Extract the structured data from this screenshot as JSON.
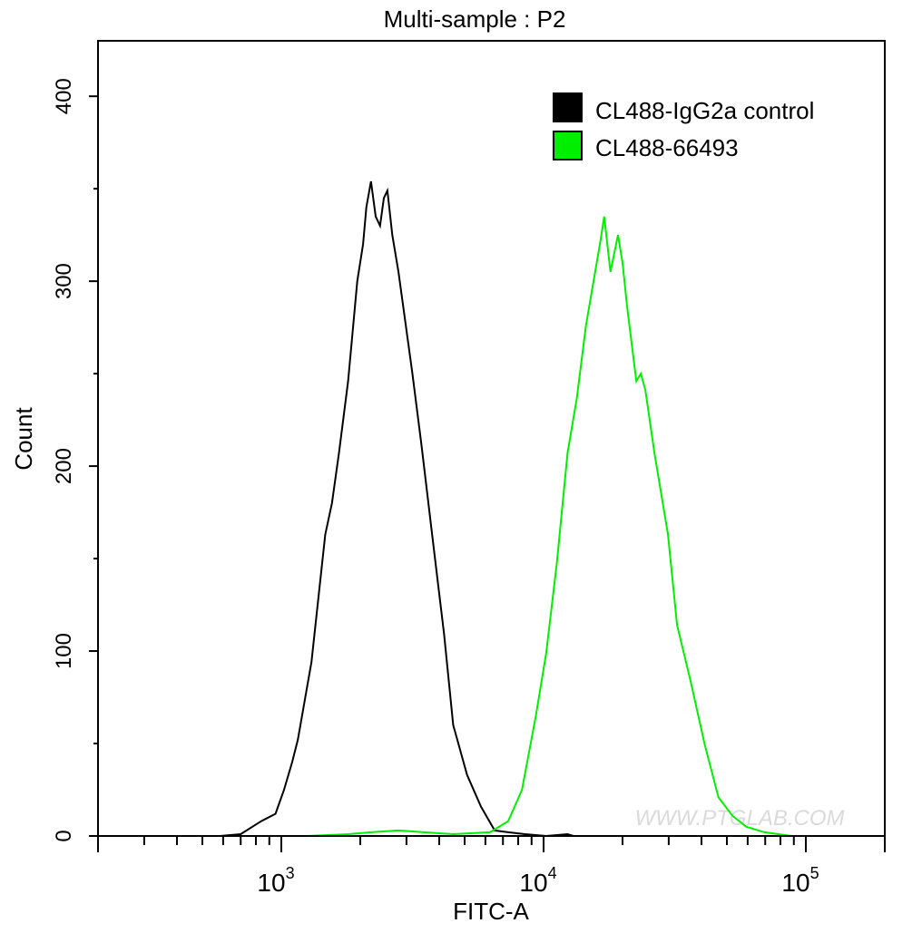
{
  "chart_data": {
    "type": "line",
    "title": "Multi-sample : P2",
    "xlabel": "FITC-A",
    "ylabel": "Count",
    "xscale": "log",
    "xlim": [
      200,
      200000
    ],
    "ylim": [
      0,
      430
    ],
    "x_ticks": [
      {
        "value": 1000,
        "base": "10",
        "exp": "3"
      },
      {
        "value": 10000,
        "base": "10",
        "exp": "4"
      },
      {
        "value": 100000,
        "base": "10",
        "exp": "5"
      }
    ],
    "y_ticks": [
      0,
      100,
      200,
      300,
      400
    ],
    "grid": false,
    "legend_position": "top-right",
    "watermark": "WWW.PTGLAB.COM",
    "series": [
      {
        "name": "CL488-IgG2a control",
        "color": "#000000",
        "points": [
          [
            585,
            0
          ],
          [
            700,
            1
          ],
          [
            838,
            8
          ],
          [
            950,
            12
          ],
          [
            1024,
            25
          ],
          [
            1100,
            40
          ],
          [
            1156,
            52
          ],
          [
            1303,
            94
          ],
          [
            1470,
            163
          ],
          [
            1560,
            180
          ],
          [
            1659,
            207
          ],
          [
            1798,
            246
          ],
          [
            1948,
            300
          ],
          [
            2050,
            320
          ],
          [
            2110,
            340
          ],
          [
            2198,
            354
          ],
          [
            2290,
            335
          ],
          [
            2380,
            330
          ],
          [
            2460,
            345
          ],
          [
            2539,
            349
          ],
          [
            2650,
            325
          ],
          [
            2798,
            305
          ],
          [
            3155,
            251
          ],
          [
            3419,
            212
          ],
          [
            3794,
            158
          ],
          [
            4175,
            109
          ],
          [
            4524,
            60
          ],
          [
            5110,
            33
          ],
          [
            5766,
            16
          ],
          [
            6508,
            3
          ],
          [
            7330,
            2
          ],
          [
            8500,
            1
          ],
          [
            10230,
            0
          ],
          [
            12340,
            1
          ],
          [
            13000,
            0
          ]
        ]
      },
      {
        "name": "CL488-66493",
        "color": "#00ee00",
        "points": [
          [
            1252,
            0
          ],
          [
            1800,
            1
          ],
          [
            2198,
            2
          ],
          [
            2798,
            3
          ],
          [
            3500,
            2
          ],
          [
            4524,
            1
          ],
          [
            6250,
            2
          ],
          [
            7330,
            8
          ],
          [
            8270,
            25
          ],
          [
            9346,
            65
          ],
          [
            10230,
            99
          ],
          [
            11240,
            148
          ],
          [
            12340,
            207
          ],
          [
            13400,
            237
          ],
          [
            14510,
            276
          ],
          [
            15720,
            305
          ],
          [
            16400,
            320
          ],
          [
            17030,
            335
          ],
          [
            17990,
            305
          ],
          [
            19220,
            325
          ],
          [
            20000,
            310
          ],
          [
            20830,
            286
          ],
          [
            22570,
            246
          ],
          [
            23500,
            250
          ],
          [
            24450,
            241
          ],
          [
            26480,
            207
          ],
          [
            29800,
            163
          ],
          [
            32280,
            114
          ],
          [
            36330,
            84
          ],
          [
            41060,
            50
          ],
          [
            46400,
            21
          ],
          [
            52440,
            11
          ],
          [
            59260,
            5
          ],
          [
            69600,
            2
          ],
          [
            88000,
            0
          ]
        ]
      }
    ]
  }
}
